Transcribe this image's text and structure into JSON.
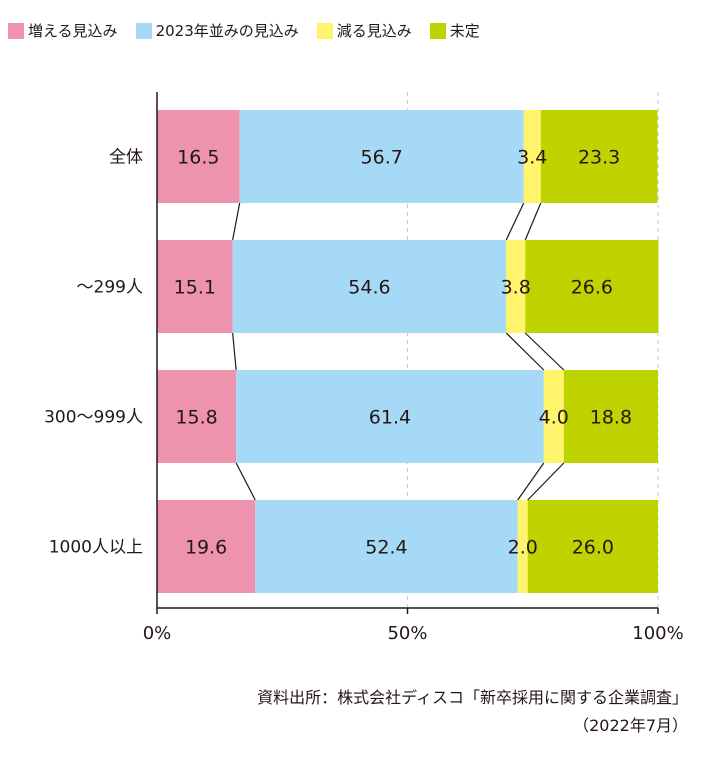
{
  "chart_data": {
    "type": "bar",
    "orientation": "horizontal",
    "stacked": true,
    "percent": true,
    "categories": [
      "全体",
      "～299人",
      "300～999人",
      "1000人以上"
    ],
    "series": [
      {
        "name": "増える見込み",
        "color": "#ee93ad",
        "values": [
          16.5,
          15.1,
          15.8,
          19.6
        ]
      },
      {
        "name": "2023年並みの見込み",
        "color": "#a6d9f5",
        "values": [
          56.7,
          54.6,
          61.4,
          52.4
        ]
      },
      {
        "name": "減る見込み",
        "color": "#fff46c",
        "values": [
          3.4,
          3.8,
          4.0,
          2.0
        ]
      },
      {
        "name": "未定",
        "color": "#bfd300",
        "values": [
          23.3,
          26.6,
          18.8,
          26.0
        ]
      }
    ],
    "xlim": [
      0,
      100
    ],
    "xticks": [
      0,
      50,
      100
    ],
    "xtick_labels": [
      "0%",
      "50%",
      "100%"
    ],
    "gridlines": "dashed vertical at 50% and 100%",
    "legend_position": "top-left",
    "connector_lines": true
  },
  "source": {
    "line1": "資料出所：株式会社ディスコ「新卒採用に関する企業調査」",
    "line2": "（2022年7月）"
  }
}
